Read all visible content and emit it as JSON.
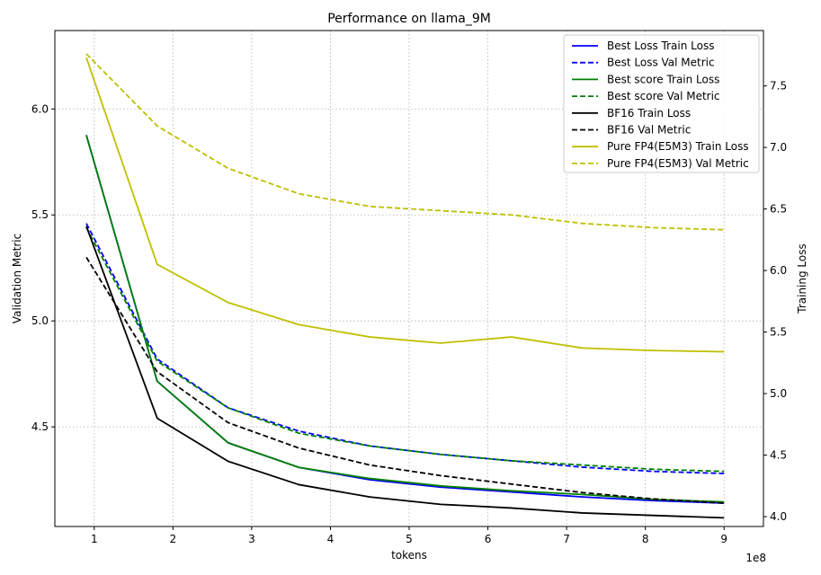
{
  "chart_data": {
    "type": "line",
    "title": "Performance on llama_9M",
    "xlabel": "tokens",
    "x_offset_label": "1e8",
    "ylabel_left": "Validation Metric",
    "ylabel_right": "Training Loss",
    "x": [
      0.9,
      1.8,
      2.7,
      3.6,
      4.5,
      5.4,
      6.3,
      7.2,
      8.1,
      9.0
    ],
    "xlim": [
      0.5,
      9.5
    ],
    "ylim_left": [
      4.03,
      6.37
    ],
    "ylim_right": [
      3.92,
      7.95
    ],
    "x_ticks": [
      1,
      2,
      3,
      4,
      5,
      6,
      7,
      8,
      9
    ],
    "y_ticks_left": [
      4.5,
      5.0,
      5.5,
      6.0
    ],
    "y_ticks_right": [
      4.0,
      4.5,
      5.0,
      5.5,
      6.0,
      6.5,
      7.0,
      7.5
    ],
    "grid": true,
    "legend_position": "top-right",
    "series": [
      {
        "name": "Best Loss Train Loss",
        "axis": "right",
        "color": "#0000ff",
        "style": "solid",
        "values": [
          7.1,
          5.1,
          4.6,
          4.4,
          4.3,
          4.24,
          4.2,
          4.16,
          4.13,
          4.11
        ]
      },
      {
        "name": "Best Loss Val Metric",
        "axis": "left",
        "color": "#0000ff",
        "style": "dashed",
        "values": [
          5.46,
          4.82,
          4.59,
          4.48,
          4.41,
          4.37,
          4.34,
          4.31,
          4.29,
          4.28
        ]
      },
      {
        "name": "Best score Train Loss",
        "axis": "right",
        "color": "#008000",
        "style": "solid",
        "values": [
          7.1,
          5.1,
          4.6,
          4.4,
          4.31,
          4.25,
          4.21,
          4.18,
          4.14,
          4.12
        ]
      },
      {
        "name": "Best score Val Metric",
        "axis": "left",
        "color": "#008000",
        "style": "dashed",
        "values": [
          5.44,
          4.81,
          4.59,
          4.47,
          4.41,
          4.37,
          4.34,
          4.32,
          4.3,
          4.29
        ]
      },
      {
        "name": "BF16 Train Loss",
        "axis": "right",
        "color": "#000000",
        "style": "solid",
        "values": [
          6.36,
          4.8,
          4.45,
          4.26,
          4.16,
          4.1,
          4.07,
          4.03,
          4.01,
          3.99
        ]
      },
      {
        "name": "BF16 Val Metric",
        "axis": "left",
        "color": "#000000",
        "style": "dashed",
        "values": [
          5.3,
          4.76,
          4.52,
          4.4,
          4.32,
          4.27,
          4.23,
          4.19,
          4.16,
          4.14
        ]
      },
      {
        "name": "Pure FP4(E5M3) Train Loss",
        "axis": "right",
        "color": "#bfbf00",
        "style": "solid",
        "values": [
          7.73,
          6.05,
          5.74,
          5.56,
          5.46,
          5.41,
          5.46,
          5.37,
          5.35,
          5.34
        ]
      },
      {
        "name": "Pure FP4(E5M3) Val Metric",
        "axis": "left",
        "color": "#bfbf00",
        "style": "dashed",
        "values": [
          6.26,
          5.92,
          5.72,
          5.6,
          5.54,
          5.52,
          5.5,
          5.46,
          5.44,
          5.43
        ]
      }
    ]
  }
}
